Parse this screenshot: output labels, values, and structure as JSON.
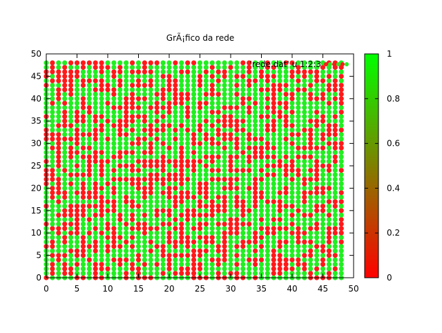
{
  "chart_data": {
    "type": "scatter",
    "title": "GrÃ¡fico da rede",
    "legend_entry": "'rede.dat' u 1:2:3",
    "legend_placement": "top-right",
    "xlabel": "",
    "ylabel": "",
    "xlim": [
      0,
      50
    ],
    "ylim": [
      0,
      50
    ],
    "x_ticks": [
      0,
      5,
      10,
      15,
      20,
      25,
      30,
      35,
      40,
      45,
      50
    ],
    "y_ticks": [
      0,
      5,
      10,
      15,
      20,
      25,
      30,
      35,
      40,
      45,
      50
    ],
    "grid": false,
    "lattice": {
      "x_min": 0,
      "x_max": 48,
      "y_min": 0,
      "y_max": 48,
      "step": 1,
      "value_domain": [
        0,
        1
      ],
      "value_rule": "pseudorandom binary state per lattice site (0 = red, 1 = green)",
      "seed": 20240517,
      "approx_fraction_value_1": 0.55
    },
    "colorbar": {
      "range": [
        0,
        1
      ],
      "ticks": [
        0,
        0.2,
        0.4,
        0.6,
        0.8,
        1
      ],
      "tick_labels": [
        "0",
        "0.2",
        "0.4",
        "0.6",
        "0.8",
        "1"
      ],
      "color_low": "#ff0000",
      "color_high": "#00ff00"
    },
    "colors": {
      "state_0": "#ff1a1a",
      "state_1": "#22ee22"
    }
  }
}
